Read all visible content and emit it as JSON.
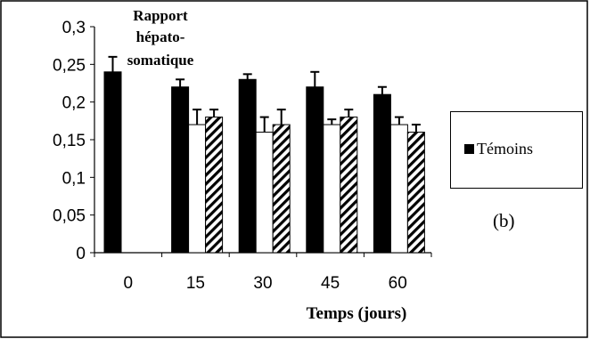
{
  "chart_data": {
    "type": "bar",
    "title": "Rapport hépato-somatique",
    "title_lines": [
      "Rapport",
      "hépato-",
      "somatique"
    ],
    "xlabel": "Temps (jours)",
    "ylabel": "",
    "categories": [
      "0",
      "15",
      "30",
      "45",
      "60"
    ],
    "ylim": [
      0,
      0.3
    ],
    "yticks": [
      "0",
      "0,05",
      "0,1",
      "0,15",
      "0,2",
      "0,25",
      "0,3"
    ],
    "grid": false,
    "legend_placement": "right",
    "panel_label": "(b)",
    "series": [
      {
        "name": "Témoins",
        "fill": "solid",
        "color": "#000000",
        "values": [
          0.24,
          0.22,
          0.23,
          0.22,
          0.21
        ],
        "errors": [
          0.02,
          0.01,
          0.007,
          0.02,
          0.01
        ]
      },
      {
        "fill": "white",
        "color": "#ffffff",
        "values": [
          null,
          0.17,
          0.16,
          0.17,
          0.17
        ],
        "errors": [
          null,
          0.02,
          0.02,
          0.007,
          0.01
        ]
      },
      {
        "fill": "hatched",
        "color": "#000000",
        "values": [
          null,
          0.18,
          0.17,
          0.18,
          0.16
        ],
        "errors": [
          null,
          0.01,
          0.02,
          0.01,
          0.01
        ]
      }
    ]
  }
}
